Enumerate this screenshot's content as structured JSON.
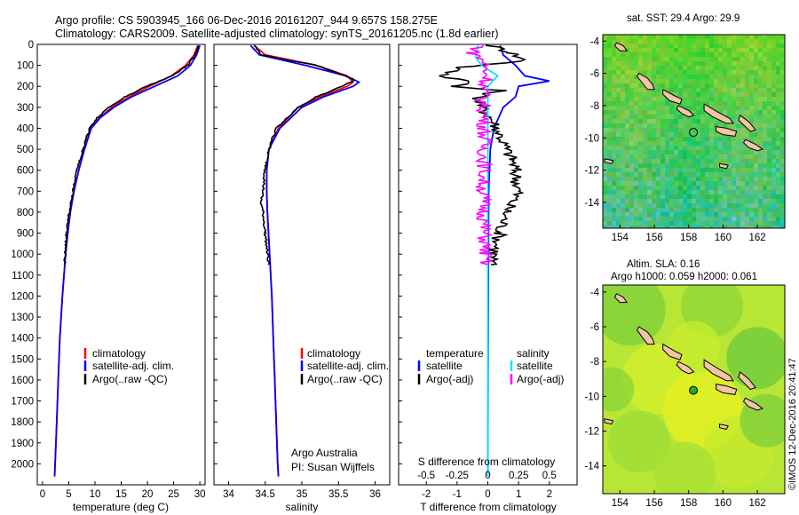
{
  "header": {
    "line1": "Argo profile: CS 5903945_166 06-Dec-2016 20161207_944 9.657S 158.275E",
    "line2": "Climatology: CARS2009. Satellite-adjusted climatology: synTS_20161205.nc (1.8d earlier)"
  },
  "colors": {
    "climatology": "#ff0000",
    "satellite": "#0000ff",
    "argo": "#000000",
    "argo_adj_salinity": "#ff00ff",
    "satellite_salinity": "#00e5ff"
  },
  "chart_data": [
    {
      "id": "temperature",
      "type": "line",
      "xlabel": "temperature (deg C)",
      "ylabel": "",
      "xlim": [
        -1,
        31
      ],
      "ylim": [
        2100,
        0
      ],
      "xticks": [
        0,
        5,
        10,
        15,
        20,
        25,
        30
      ],
      "yticks": [
        0,
        100,
        200,
        300,
        400,
        500,
        600,
        700,
        800,
        900,
        1000,
        1100,
        1200,
        1300,
        1400,
        1500,
        1600,
        1700,
        1800,
        1900,
        2000
      ],
      "legend": [
        "climatology",
        "satellite-adj. clim.",
        "Argo(..raw -QC)"
      ],
      "series": [
        {
          "name": "climatology",
          "color": "#ff0000",
          "depth": [
            5,
            50,
            100,
            150,
            200,
            250,
            300,
            350,
            400,
            500,
            600,
            700,
            800,
            900,
            1000,
            1200,
            1400,
            1600,
            1800,
            2000,
            2060
          ],
          "values": [
            29.6,
            28.9,
            27.3,
            24.6,
            20.4,
            16.5,
            13.2,
            10.8,
            9.2,
            7.9,
            6.9,
            6.0,
            5.3,
            4.8,
            4.4,
            3.8,
            3.3,
            3.0,
            2.7,
            2.4,
            2.3
          ]
        },
        {
          "name": "satellite-adj. clim.",
          "color": "#0000ff",
          "depth": [
            5,
            50,
            100,
            150,
            200,
            250,
            300,
            350,
            400,
            500,
            600,
            700,
            800,
            900,
            1000,
            1200,
            1400,
            1600,
            1800,
            2000,
            2060
          ],
          "values": [
            30.0,
            29.4,
            28.2,
            25.8,
            21.4,
            17.0,
            13.6,
            11.0,
            9.3,
            8.0,
            6.9,
            6.0,
            5.3,
            4.8,
            4.4,
            3.8,
            3.3,
            3.0,
            2.7,
            2.4,
            2.3
          ]
        },
        {
          "name": "Argo(..raw -QC)",
          "color": "#000000",
          "depth": [
            5,
            50,
            100,
            150,
            200,
            250,
            300,
            350,
            400,
            500,
            600,
            700,
            800,
            900,
            1000,
            1050
          ],
          "values": [
            29.7,
            29.2,
            27.6,
            24.8,
            19.8,
            15.8,
            12.6,
            10.4,
            9.0,
            7.7,
            6.6,
            5.8,
            5.1,
            4.6,
            4.3,
            4.2
          ]
        }
      ]
    },
    {
      "id": "salinity",
      "type": "line",
      "xlabel": "salinity",
      "xlim": [
        33.8,
        36.2
      ],
      "ylim": [
        2100,
        0
      ],
      "xticks": [
        34,
        34.5,
        35,
        35.5,
        36
      ],
      "legend": [
        "climatology",
        "satellite-adj. clim.",
        "Argo(..raw -QC)"
      ],
      "annotation": [
        "Argo Australia",
        "PI: Susan Wijffels"
      ],
      "series": [
        {
          "name": "climatology",
          "color": "#ff0000",
          "depth": [
            5,
            50,
            100,
            150,
            180,
            200,
            250,
            300,
            400,
            500,
            600,
            700,
            800,
            1000,
            1200,
            1400,
            1600,
            1800,
            2000,
            2060
          ],
          "values": [
            34.35,
            34.5,
            35.2,
            35.62,
            35.7,
            35.62,
            35.25,
            34.95,
            34.68,
            34.55,
            34.52,
            34.52,
            34.53,
            34.56,
            34.59,
            34.61,
            34.63,
            34.65,
            34.67,
            34.68
          ]
        },
        {
          "name": "satellite-adj. clim.",
          "color": "#0000ff",
          "depth": [
            5,
            50,
            100,
            150,
            180,
            200,
            250,
            300,
            400,
            500,
            600,
            700,
            800,
            1000,
            1200,
            1400,
            1600,
            1800,
            2000,
            2060
          ],
          "values": [
            34.3,
            34.42,
            35.05,
            35.6,
            35.78,
            35.7,
            35.3,
            35.0,
            34.7,
            34.55,
            34.52,
            34.52,
            34.53,
            34.56,
            34.59,
            34.61,
            34.63,
            34.65,
            34.67,
            34.68
          ]
        },
        {
          "name": "Argo(..raw -QC)",
          "color": "#000000",
          "depth": [
            5,
            50,
            100,
            150,
            170,
            200,
            250,
            300,
            400,
            500,
            600,
            700,
            750,
            800,
            900,
            1000,
            1050
          ],
          "values": [
            34.35,
            34.45,
            35.2,
            35.6,
            35.72,
            35.55,
            35.2,
            34.95,
            34.65,
            34.55,
            34.5,
            34.47,
            34.44,
            34.47,
            34.5,
            34.53,
            34.55
          ]
        }
      ]
    },
    {
      "id": "difference",
      "type": "line",
      "xlabel": "T difference from climatology",
      "top_label": "S difference from climatology",
      "xlim": [
        -2.9,
        2.9
      ],
      "ylim": [
        2100,
        0
      ],
      "xticks": [
        -2,
        -1,
        0,
        1,
        2
      ],
      "top_ticks": [
        "-0.5",
        "-0.25",
        "0",
        "0.25",
        "0.5"
      ],
      "legend_left_title": "temperature",
      "legend_right_title": "salinity",
      "legend": [
        "satellite",
        "Argo(-adj)",
        "satellite",
        "Argo(-adj)"
      ],
      "series": [
        {
          "name": "temperature satellite",
          "color": "#0000ff",
          "depth": [
            5,
            50,
            100,
            150,
            175,
            200,
            250,
            300,
            400,
            500,
            700,
            1000,
            1500,
            2000,
            2060
          ],
          "values": [
            0.4,
            0.5,
            0.9,
            1.2,
            2.0,
            1.0,
            0.9,
            0.5,
            0.2,
            0.08,
            0.03,
            0.02,
            0.01,
            0.0,
            0.0
          ]
        },
        {
          "name": "temperature Argo(-adj)",
          "color": "#000000",
          "depth": [
            5,
            40,
            80,
            110,
            150,
            180,
            200,
            220,
            250,
            300,
            350,
            400,
            500,
            550,
            600,
            700,
            800,
            900,
            1000,
            1050
          ],
          "values": [
            0.1,
            0.8,
            1.2,
            -0.9,
            -1.5,
            -0.4,
            -1.2,
            0.4,
            -0.3,
            -0.2,
            0.1,
            0.3,
            0.6,
            0.8,
            0.9,
            1.0,
            0.6,
            0.4,
            0.2,
            0.1
          ]
        },
        {
          "name": "salinity satellite",
          "color": "#00e5ff",
          "depth": [
            5,
            60,
            100,
            150,
            200,
            250,
            300,
            400,
            600,
            1000,
            1500,
            2000,
            2060
          ],
          "values": [
            -0.08,
            -0.1,
            -0.05,
            0.08,
            0.0,
            0.0,
            0.0,
            0.0,
            0.0,
            0.0,
            0.0,
            0.0,
            0.0
          ]
        },
        {
          "name": "salinity Argo(-adj)",
          "color": "#ff00ff",
          "depth": [
            5,
            40,
            80,
            120,
            160,
            200,
            260,
            300,
            400,
            500,
            600,
            700,
            800,
            900,
            1000,
            1050
          ],
          "values": [
            -0.05,
            -0.12,
            -0.03,
            -0.02,
            0.0,
            -0.03,
            -0.04,
            -0.03,
            -0.03,
            -0.03,
            -0.03,
            -0.04,
            -0.03,
            -0.03,
            -0.02,
            -0.02
          ]
        }
      ]
    },
    {
      "id": "sst_map",
      "type": "heatmap",
      "title": "sat. SST: 29.4  Argo: 29.9",
      "xlim": [
        153,
        163.6
      ],
      "ylim": [
        -15.6,
        -3.6
      ],
      "xticks": [
        154,
        156,
        158,
        160,
        162
      ],
      "yticks": [
        -4,
        -6,
        -8,
        -10,
        -12,
        -14
      ],
      "argo_position": {
        "lon": 158.275,
        "lat": -9.657
      }
    },
    {
      "id": "sla_map",
      "type": "heatmap",
      "title": [
        "Altim. SLA: 0.16",
        "Argo h1000: 0.059 h2000: 0.061"
      ],
      "xlim": [
        153,
        163.6
      ],
      "ylim": [
        -15.6,
        -3.6
      ],
      "xticks": [
        154,
        156,
        158,
        160,
        162
      ],
      "yticks": [
        -4,
        -6,
        -8,
        -10,
        -12,
        -14
      ],
      "argo_position": {
        "lon": 158.275,
        "lat": -9.657
      }
    }
  ],
  "credit": "©IMOS 12-Dec-2016 20:41:47"
}
